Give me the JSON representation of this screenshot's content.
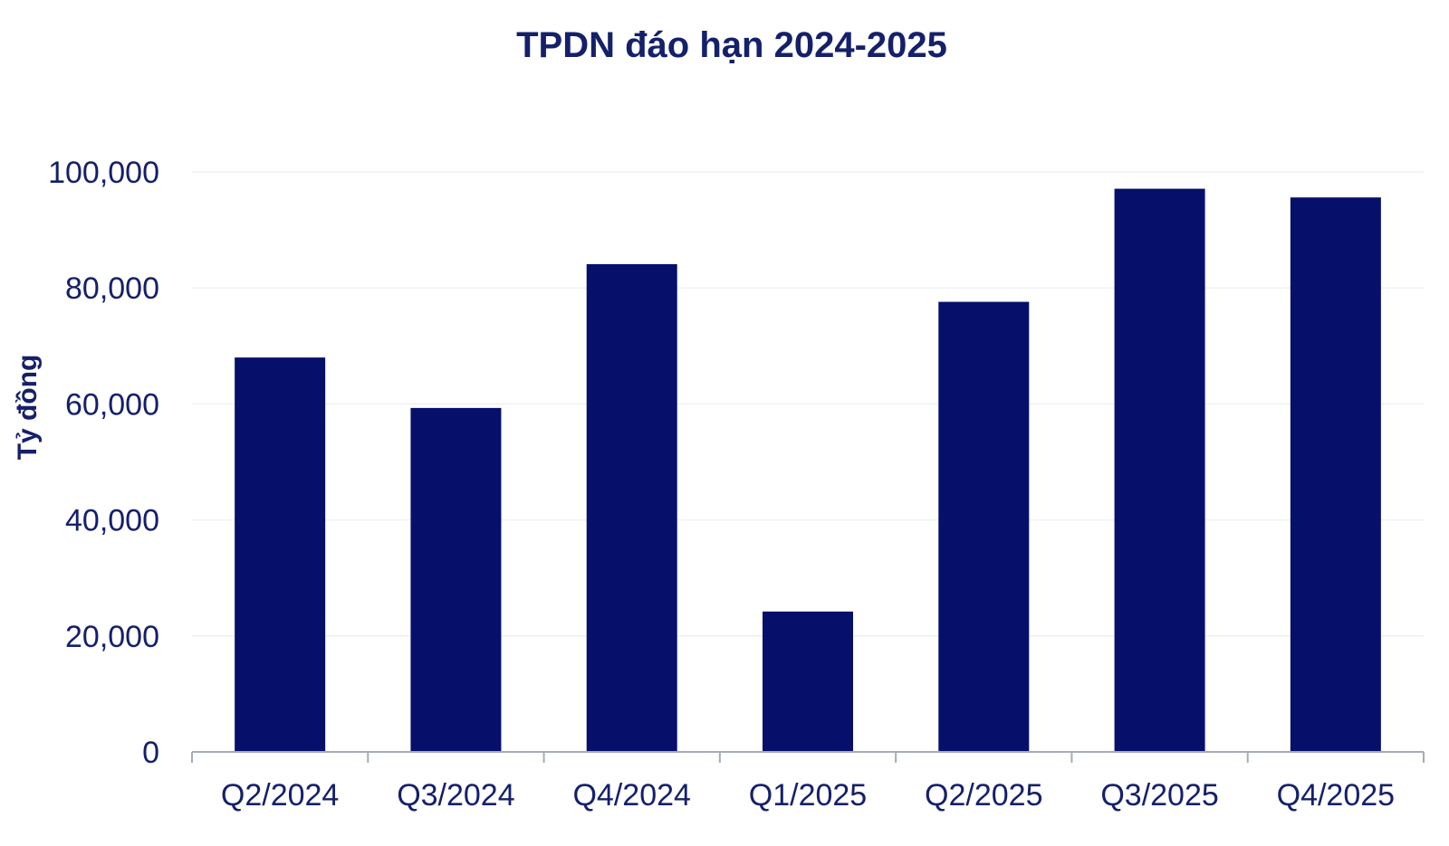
{
  "colors": {
    "bar": "#06106b",
    "text": "#15206b",
    "grid": "#eef0f5",
    "axis": "#a7abb5"
  },
  "chart_data": {
    "type": "bar",
    "title": "TPDN đáo hạn 2024-2025",
    "xlabel": "",
    "ylabel": "Tỷ đồng",
    "categories": [
      "Q2/2024",
      "Q3/2024",
      "Q4/2024",
      "Q1/2025",
      "Q2/2025",
      "Q3/2025",
      "Q4/2025"
    ],
    "values": [
      68000,
      59300,
      84100,
      24200,
      77600,
      97100,
      95600
    ],
    "ylim": [
      0,
      100000
    ],
    "yticks": [
      0,
      20000,
      40000,
      60000,
      80000,
      100000
    ],
    "ytick_labels": [
      "0",
      "20,000",
      "40,000",
      "60,000",
      "80,000",
      "100,000"
    ],
    "grid": true,
    "legend": "none"
  }
}
